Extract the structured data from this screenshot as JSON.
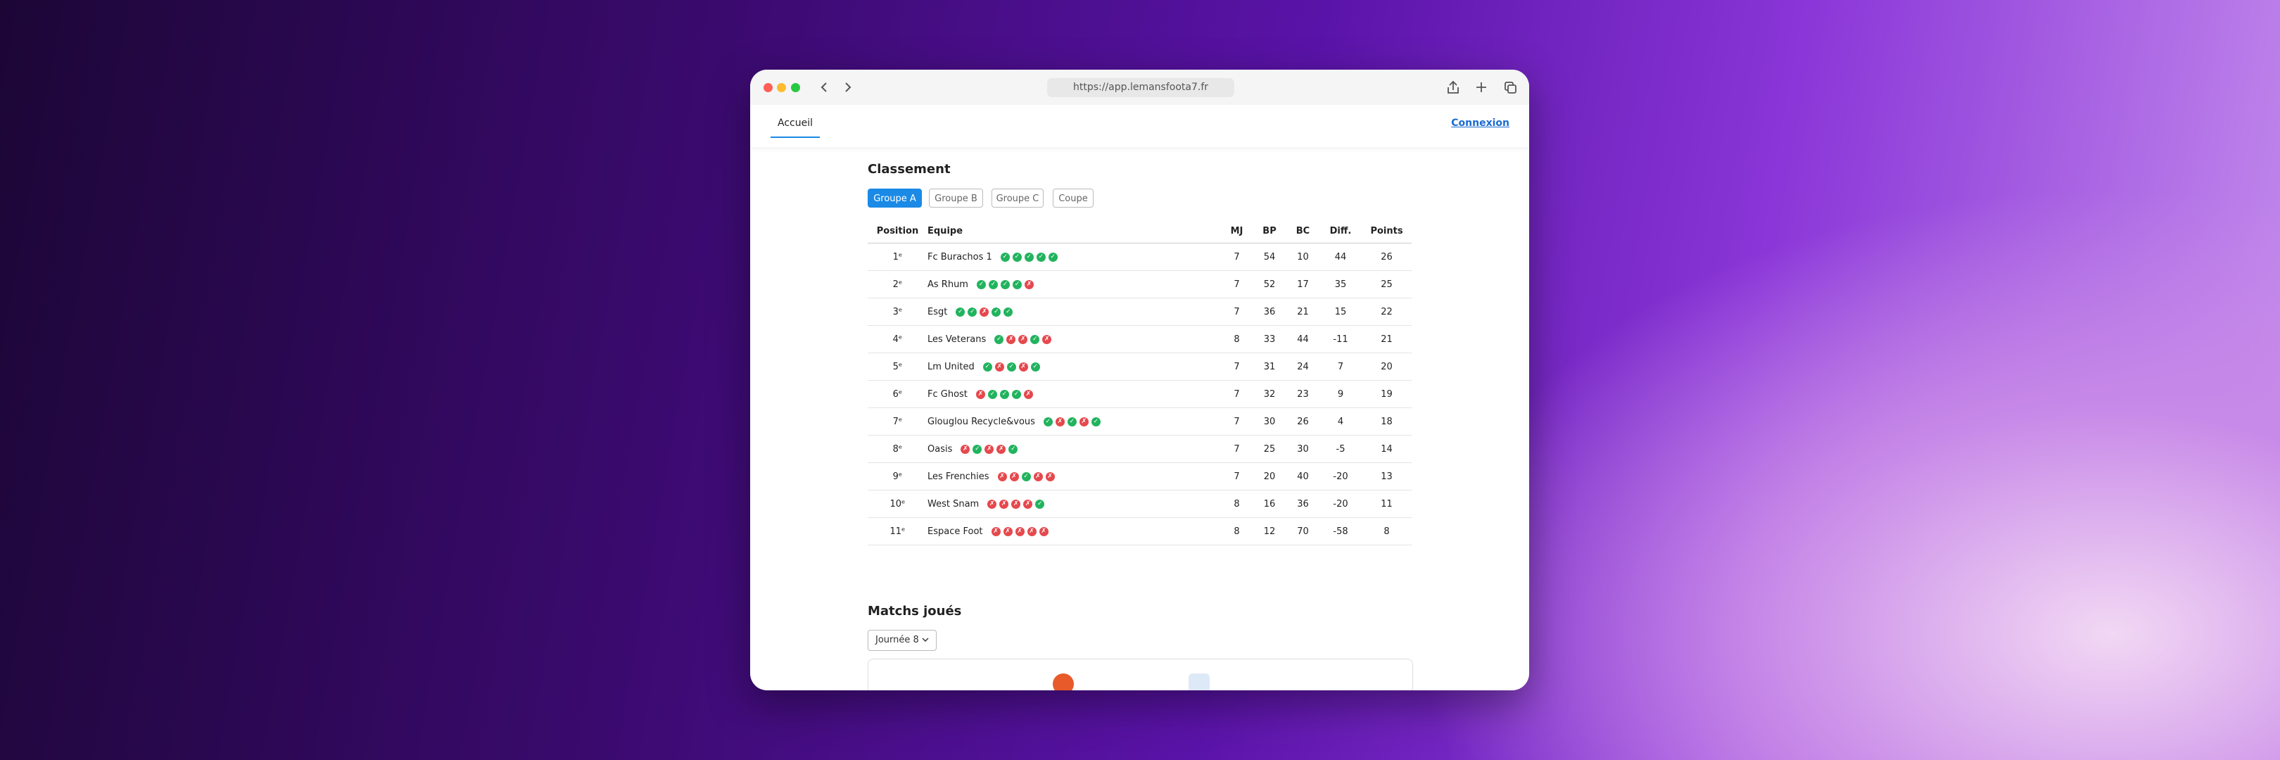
{
  "browser": {
    "url": "https://app.lemansfoota7.fr"
  },
  "nav": {
    "home": "Accueil",
    "login": "Connexion"
  },
  "standings": {
    "title": "Classement",
    "tabs": [
      "Groupe A",
      "Groupe B",
      "Groupe C",
      "Coupe"
    ],
    "columns": [
      "Position",
      "Equipe",
      "MJ",
      "BP",
      "BC",
      "Diff.",
      "Points"
    ],
    "rows": [
      {
        "position": "1ᵉ",
        "team": "Fc Burachos 1",
        "form": [
          "✓",
          "✓",
          "✓",
          "✓",
          "✓"
        ],
        "mj": 7,
        "bp": 54,
        "bc": 10,
        "diff": 44,
        "points": 26
      },
      {
        "position": "2ᵉ",
        "team": "As Rhum",
        "form": [
          "✓",
          "✓",
          "✓",
          "✓",
          "✗"
        ],
        "mj": 7,
        "bp": 52,
        "bc": 17,
        "diff": 35,
        "points": 25
      },
      {
        "position": "3ᵉ",
        "team": "Esgt",
        "form": [
          "✓",
          "✓",
          "✗",
          "✓",
          "✓"
        ],
        "mj": 7,
        "bp": 36,
        "bc": 21,
        "diff": 15,
        "points": 22
      },
      {
        "position": "4ᵉ",
        "team": "Les Veterans",
        "form": [
          "✓",
          "✗",
          "✗",
          "✓",
          "✗"
        ],
        "mj": 8,
        "bp": 33,
        "bc": 44,
        "diff": -11,
        "points": 21
      },
      {
        "position": "5ᵉ",
        "team": "Lm United",
        "form": [
          "✓",
          "✗",
          "✓",
          "✗",
          "✓"
        ],
        "mj": 7,
        "bp": 31,
        "bc": 24,
        "diff": 7,
        "points": 20
      },
      {
        "position": "6ᵉ",
        "team": "Fc Ghost",
        "form": [
          "✗",
          "✓",
          "✓",
          "✓",
          "✗"
        ],
        "mj": 7,
        "bp": 32,
        "bc": 23,
        "diff": 9,
        "points": 19
      },
      {
        "position": "7ᵉ",
        "team": "Glouglou Recycle&vous",
        "form": [
          "✓",
          "✗",
          "✓",
          "✗",
          "✓"
        ],
        "mj": 7,
        "bp": 30,
        "bc": 26,
        "diff": 4,
        "points": 18
      },
      {
        "position": "8ᵉ",
        "team": "Oasis",
        "form": [
          "✗",
          "✓",
          "✗",
          "✗",
          "✓"
        ],
        "mj": 7,
        "bp": 25,
        "bc": 30,
        "diff": -5,
        "points": 14
      },
      {
        "position": "9ᵉ",
        "team": "Les Frenchies",
        "form": [
          "✗",
          "✗",
          "✓",
          "✗",
          "✗"
        ],
        "mj": 7,
        "bp": 20,
        "bc": 40,
        "diff": -20,
        "points": 13
      },
      {
        "position": "10ᵉ",
        "team": "West Snam",
        "form": [
          "✗",
          "✗",
          "✗",
          "✗",
          "✓"
        ],
        "mj": 8,
        "bp": 16,
        "bc": 36,
        "diff": -20,
        "points": 11
      },
      {
        "position": "11ᵉ",
        "team": "Espace Foot",
        "form": [
          "✗",
          "✗",
          "✗",
          "✗",
          "✗"
        ],
        "mj": 8,
        "bp": 12,
        "bc": 70,
        "diff": -58,
        "points": 8
      }
    ]
  },
  "matches": {
    "title": "Matchs joués",
    "round": "Journée 8"
  }
}
